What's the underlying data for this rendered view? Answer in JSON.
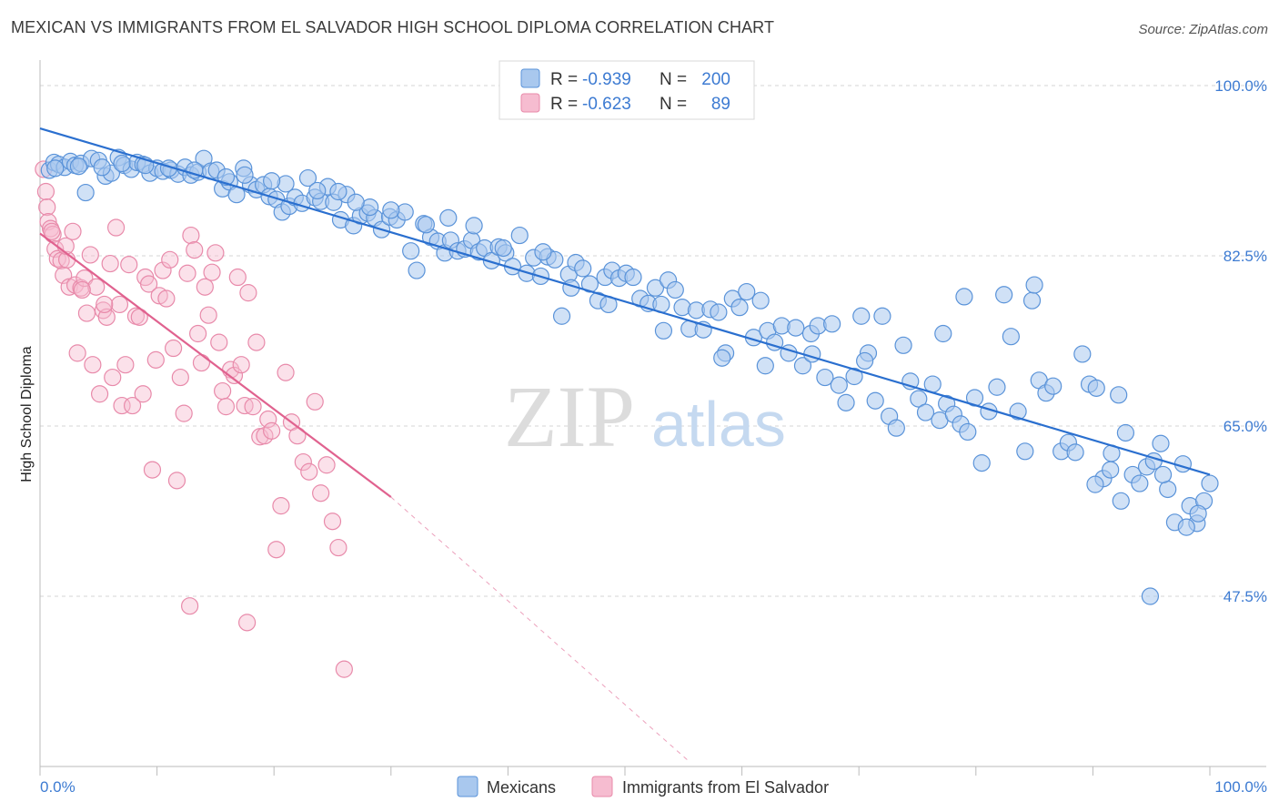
{
  "title": "MEXICAN VS IMMIGRANTS FROM EL SALVADOR HIGH SCHOOL DIPLOMA CORRELATION CHART",
  "source": "Source: ZipAtlas.com",
  "watermark": {
    "zip": "ZIP",
    "atlas": "atlas"
  },
  "colors": {
    "blue_fill": "#a9c8ee",
    "blue_stroke": "#5a93d9",
    "blue_line": "#2a6fcf",
    "pink_fill": "#f6bcd0",
    "pink_stroke": "#e88aaa",
    "pink_line": "#e0628f",
    "grid": "#d6d6d6",
    "axis_text": "#3d7bd2"
  },
  "legend": {
    "rows": [
      {
        "r_label": "R =",
        "r_value": "-0.939",
        "n_label": "N =",
        "n_value": "200"
      },
      {
        "r_label": "R =",
        "r_value": "-0.623",
        "n_label": "N =",
        "n_value": "89"
      }
    ]
  },
  "bottom_legend": [
    "Mexicans",
    "Immigrants from El Salvador"
  ],
  "chart_data": {
    "type": "scatter",
    "title": "MEXICAN VS IMMIGRANTS FROM EL SALVADOR HIGH SCHOOL DIPLOMA CORRELATION CHART",
    "xlabel": "",
    "ylabel": "High School Diploma",
    "xlim": [
      0,
      100
    ],
    "ylim": [
      30,
      101.5
    ],
    "x_tick_labels": [
      "0.0%",
      "100.0%"
    ],
    "y_ticks": [
      100.0,
      82.5,
      65.0,
      47.5
    ],
    "y_tick_labels": [
      "100.0%",
      "82.5%",
      "65.0%",
      "47.5%"
    ],
    "series": [
      {
        "name": "Mexicans",
        "r": -0.939,
        "n": 200,
        "trend": {
          "x0": 0,
          "y0": 95.6,
          "x1": 100,
          "y1": 60.0
        },
        "points": [
          [
            0.8,
            91.3
          ],
          [
            1.2,
            92.1
          ],
          [
            1.6,
            91.9
          ],
          [
            2.1,
            91.6
          ],
          [
            2.6,
            92.2
          ],
          [
            3.0,
            91.8
          ],
          [
            3.5,
            92.0
          ],
          [
            3.9,
            89.0
          ],
          [
            4.4,
            92.5
          ],
          [
            5.0,
            92.3
          ],
          [
            5.6,
            90.7
          ],
          [
            6.1,
            91.0
          ],
          [
            6.7,
            92.6
          ],
          [
            7.2,
            91.8
          ],
          [
            7.8,
            91.4
          ],
          [
            8.3,
            92.1
          ],
          [
            8.8,
            91.9
          ],
          [
            9.4,
            91.0
          ],
          [
            10.0,
            91.5
          ],
          [
            10.5,
            91.2
          ],
          [
            11.2,
            91.3
          ],
          [
            11.8,
            90.9
          ],
          [
            12.4,
            91.6
          ],
          [
            12.9,
            90.8
          ],
          [
            13.5,
            91.1
          ],
          [
            14.0,
            92.5
          ],
          [
            14.6,
            91.2
          ],
          [
            15.1,
            91.3
          ],
          [
            15.6,
            89.4
          ],
          [
            16.2,
            90.1
          ],
          [
            16.8,
            88.8
          ],
          [
            17.4,
            91.5
          ],
          [
            18.0,
            89.8
          ],
          [
            18.5,
            89.3
          ],
          [
            19.1,
            89.8
          ],
          [
            19.6,
            88.6
          ],
          [
            20.2,
            88.3
          ],
          [
            20.7,
            87.0
          ],
          [
            21.3,
            87.6
          ],
          [
            21.8,
            88.5
          ],
          [
            22.4,
            87.9
          ],
          [
            22.9,
            90.5
          ],
          [
            23.5,
            88.5
          ],
          [
            24.0,
            88.1
          ],
          [
            24.6,
            89.6
          ],
          [
            25.1,
            88.0
          ],
          [
            25.7,
            86.2
          ],
          [
            26.2,
            88.8
          ],
          [
            26.8,
            85.6
          ],
          [
            27.4,
            86.6
          ],
          [
            28.0,
            86.9
          ],
          [
            28.6,
            86.4
          ],
          [
            29.2,
            85.2
          ],
          [
            29.9,
            86.5
          ],
          [
            30.5,
            86.2
          ],
          [
            31.2,
            87.0
          ],
          [
            31.7,
            83.0
          ],
          [
            32.2,
            81.0
          ],
          [
            32.8,
            85.8
          ],
          [
            33.4,
            84.4
          ],
          [
            34.0,
            84.0
          ],
          [
            34.6,
            82.8
          ],
          [
            35.1,
            84.1
          ],
          [
            35.7,
            83.0
          ],
          [
            36.3,
            83.2
          ],
          [
            36.9,
            84.1
          ],
          [
            37.5,
            82.9
          ],
          [
            38.0,
            83.3
          ],
          [
            38.6,
            82.0
          ],
          [
            39.2,
            83.4
          ],
          [
            39.8,
            82.8
          ],
          [
            40.4,
            81.4
          ],
          [
            41.0,
            84.6
          ],
          [
            41.6,
            80.7
          ],
          [
            42.2,
            82.3
          ],
          [
            42.8,
            80.4
          ],
          [
            43.4,
            82.4
          ],
          [
            44.0,
            82.1
          ],
          [
            44.6,
            76.3
          ],
          [
            45.2,
            80.6
          ],
          [
            45.8,
            81.8
          ],
          [
            46.4,
            81.2
          ],
          [
            47.0,
            79.6
          ],
          [
            47.7,
            77.9
          ],
          [
            48.3,
            80.3
          ],
          [
            48.9,
            81.0
          ],
          [
            49.5,
            80.2
          ],
          [
            50.1,
            80.7
          ],
          [
            50.7,
            80.3
          ],
          [
            51.3,
            78.1
          ],
          [
            52.0,
            77.6
          ],
          [
            52.6,
            79.2
          ],
          [
            53.1,
            77.5
          ],
          [
            53.7,
            80.0
          ],
          [
            54.3,
            79.0
          ],
          [
            54.9,
            77.2
          ],
          [
            55.5,
            75.0
          ],
          [
            56.1,
            76.9
          ],
          [
            56.7,
            74.9
          ],
          [
            57.3,
            77.0
          ],
          [
            58.0,
            76.7
          ],
          [
            58.6,
            72.5
          ],
          [
            59.2,
            78.1
          ],
          [
            59.8,
            77.2
          ],
          [
            60.4,
            78.8
          ],
          [
            61.0,
            74.1
          ],
          [
            61.6,
            77.9
          ],
          [
            62.2,
            74.8
          ],
          [
            62.8,
            73.6
          ],
          [
            63.4,
            75.3
          ],
          [
            64.0,
            72.5
          ],
          [
            64.6,
            75.1
          ],
          [
            65.2,
            71.2
          ],
          [
            65.9,
            74.5
          ],
          [
            66.5,
            75.3
          ],
          [
            67.1,
            70.0
          ],
          [
            67.7,
            75.5
          ],
          [
            68.3,
            69.2
          ],
          [
            68.9,
            67.4
          ],
          [
            69.6,
            70.1
          ],
          [
            70.2,
            76.3
          ],
          [
            70.8,
            72.5
          ],
          [
            71.4,
            67.6
          ],
          [
            72.0,
            76.3
          ],
          [
            72.6,
            66.0
          ],
          [
            73.2,
            64.8
          ],
          [
            73.8,
            73.3
          ],
          [
            74.4,
            69.6
          ],
          [
            75.1,
            67.8
          ],
          [
            75.7,
            66.4
          ],
          [
            76.3,
            69.3
          ],
          [
            76.9,
            65.6
          ],
          [
            77.5,
            67.3
          ],
          [
            78.1,
            66.2
          ],
          [
            78.7,
            65.2
          ],
          [
            79.3,
            64.4
          ],
          [
            79.9,
            67.9
          ],
          [
            80.5,
            61.2
          ],
          [
            81.1,
            66.5
          ],
          [
            81.8,
            69.0
          ],
          [
            82.4,
            78.5
          ],
          [
            83.0,
            74.2
          ],
          [
            83.6,
            66.5
          ],
          [
            84.2,
            62.4
          ],
          [
            84.8,
            77.9
          ],
          [
            85.4,
            69.7
          ],
          [
            86.0,
            68.4
          ],
          [
            86.6,
            69.1
          ],
          [
            87.3,
            62.4
          ],
          [
            87.9,
            63.3
          ],
          [
            88.5,
            62.3
          ],
          [
            89.1,
            72.4
          ],
          [
            89.7,
            69.3
          ],
          [
            90.3,
            68.9
          ],
          [
            90.9,
            59.6
          ],
          [
            91.6,
            62.2
          ],
          [
            92.2,
            68.2
          ],
          [
            92.8,
            64.3
          ],
          [
            93.4,
            60.0
          ],
          [
            94.0,
            59.1
          ],
          [
            94.6,
            60.8
          ],
          [
            95.2,
            61.4
          ],
          [
            95.8,
            63.2
          ],
          [
            96.4,
            58.5
          ],
          [
            97.0,
            55.1
          ],
          [
            97.7,
            61.1
          ],
          [
            98.3,
            56.8
          ],
          [
            98.9,
            55.0
          ],
          [
            99.5,
            57.3
          ],
          [
            100.0,
            59.1
          ],
          [
            94.9,
            47.5
          ],
          [
            91.5,
            60.5
          ],
          [
            90.2,
            59.0
          ],
          [
            92.4,
            57.3
          ],
          [
            96.0,
            60.0
          ],
          [
            98.0,
            54.6
          ],
          [
            99.0,
            56.0
          ],
          [
            85.0,
            79.5
          ],
          [
            79.0,
            78.3
          ],
          [
            77.2,
            74.5
          ],
          [
            70.5,
            71.7
          ],
          [
            66.0,
            72.4
          ],
          [
            62.0,
            71.2
          ],
          [
            58.3,
            72.0
          ],
          [
            53.3,
            74.8
          ],
          [
            48.6,
            77.5
          ],
          [
            45.4,
            79.2
          ],
          [
            43.0,
            82.9
          ],
          [
            39.6,
            83.3
          ],
          [
            37.1,
            85.6
          ],
          [
            34.9,
            86.4
          ],
          [
            33.0,
            85.7
          ],
          [
            30.0,
            87.2
          ],
          [
            28.2,
            87.5
          ],
          [
            27.0,
            88.0
          ],
          [
            25.5,
            89.1
          ],
          [
            23.7,
            89.2
          ],
          [
            21.0,
            89.9
          ],
          [
            19.8,
            90.2
          ],
          [
            17.5,
            90.8
          ],
          [
            15.9,
            90.6
          ],
          [
            13.2,
            91.3
          ],
          [
            11.0,
            91.5
          ],
          [
            9.0,
            91.8
          ],
          [
            7.0,
            92.0
          ],
          [
            5.3,
            91.6
          ],
          [
            3.3,
            91.7
          ],
          [
            1.3,
            91.5
          ]
        ]
      },
      {
        "name": "Immigrants from El Salvador",
        "r": -0.623,
        "n": 89,
        "trend": {
          "x0": 0,
          "y0": 84.8,
          "x1": 30,
          "y1": 57.7
        },
        "trend_dashed": {
          "x0": 30,
          "y0": 57.7,
          "x1": 55.5,
          "y1": 30.5
        },
        "points": [
          [
            0.3,
            91.4
          ],
          [
            0.5,
            89.1
          ],
          [
            0.6,
            87.5
          ],
          [
            0.7,
            86.0
          ],
          [
            0.9,
            85.3
          ],
          [
            1.1,
            84.7
          ],
          [
            1.3,
            83.2
          ],
          [
            1.5,
            82.2
          ],
          [
            1.8,
            82.0
          ],
          [
            2.0,
            80.5
          ],
          [
            2.3,
            82.1
          ],
          [
            2.5,
            79.3
          ],
          [
            2.8,
            85.0
          ],
          [
            3.0,
            79.5
          ],
          [
            3.2,
            72.5
          ],
          [
            3.5,
            79.2
          ],
          [
            3.8,
            80.2
          ],
          [
            4.0,
            76.6
          ],
          [
            4.3,
            82.6
          ],
          [
            4.5,
            71.3
          ],
          [
            4.8,
            79.3
          ],
          [
            5.1,
            68.3
          ],
          [
            5.4,
            76.9
          ],
          [
            5.7,
            76.2
          ],
          [
            6.0,
            81.7
          ],
          [
            6.2,
            70.0
          ],
          [
            6.5,
            85.4
          ],
          [
            6.8,
            77.5
          ],
          [
            7.0,
            67.1
          ],
          [
            7.3,
            71.3
          ],
          [
            7.6,
            81.6
          ],
          [
            7.9,
            67.1
          ],
          [
            8.2,
            76.3
          ],
          [
            8.5,
            76.2
          ],
          [
            8.8,
            68.3
          ],
          [
            9.0,
            80.3
          ],
          [
            9.3,
            79.6
          ],
          [
            9.6,
            60.5
          ],
          [
            9.9,
            71.8
          ],
          [
            10.2,
            78.4
          ],
          [
            10.5,
            81.0
          ],
          [
            10.8,
            78.1
          ],
          [
            11.1,
            82.1
          ],
          [
            11.4,
            73.0
          ],
          [
            11.7,
            59.4
          ],
          [
            12.0,
            70.0
          ],
          [
            12.3,
            66.3
          ],
          [
            12.6,
            80.7
          ],
          [
            12.9,
            84.6
          ],
          [
            13.2,
            83.1
          ],
          [
            13.5,
            74.5
          ],
          [
            13.8,
            71.5
          ],
          [
            14.1,
            79.3
          ],
          [
            14.4,
            76.4
          ],
          [
            14.7,
            80.8
          ],
          [
            15.0,
            82.8
          ],
          [
            15.3,
            73.6
          ],
          [
            15.6,
            68.6
          ],
          [
            15.9,
            67.0
          ],
          [
            16.3,
            70.8
          ],
          [
            16.6,
            70.2
          ],
          [
            16.9,
            80.3
          ],
          [
            17.2,
            71.3
          ],
          [
            17.5,
            67.1
          ],
          [
            17.8,
            78.7
          ],
          [
            18.2,
            67.0
          ],
          [
            18.5,
            73.6
          ],
          [
            18.8,
            63.9
          ],
          [
            19.2,
            64.0
          ],
          [
            19.5,
            65.7
          ],
          [
            19.8,
            64.5
          ],
          [
            20.2,
            52.3
          ],
          [
            20.6,
            56.8
          ],
          [
            21.0,
            70.5
          ],
          [
            21.5,
            65.4
          ],
          [
            22.0,
            64.0
          ],
          [
            22.5,
            61.3
          ],
          [
            23.0,
            60.3
          ],
          [
            23.5,
            67.5
          ],
          [
            24.0,
            58.1
          ],
          [
            24.5,
            61.0
          ],
          [
            25.0,
            55.2
          ],
          [
            25.5,
            52.5
          ],
          [
            26.0,
            40.0
          ],
          [
            1.0,
            85.0
          ],
          [
            2.2,
            83.5
          ],
          [
            3.6,
            79.0
          ],
          [
            5.5,
            77.5
          ],
          [
            12.8,
            46.5
          ],
          [
            17.7,
            44.8
          ]
        ]
      }
    ]
  }
}
